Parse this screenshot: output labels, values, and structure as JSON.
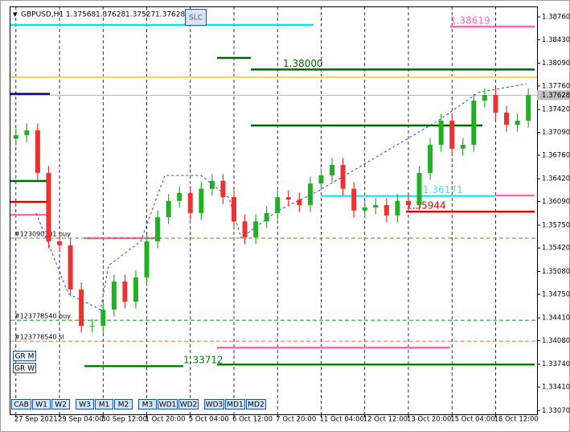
{
  "chart_data": {
    "type": "candlestick",
    "symbol": "GBPUSD,H1",
    "header_prices": [
      1.37568,
      1.37628,
      1.37527,
      1.37628
    ],
    "button_slc": "SLC",
    "buttons": [
      "CAB",
      "W1",
      "W2",
      "W3",
      "M1",
      "M2",
      "M3",
      "WD1",
      "WD2",
      "WD3",
      "MD1",
      "MD2"
    ],
    "side_buttons": [
      "GR M",
      "GR W"
    ],
    "up_color": "#22b022",
    "down_color": "#ee3030",
    "open": [
      1.37,
      1.3705,
      1.3712,
      1.36505,
      1.35515,
      1.3546,
      1.3482,
      1.34295,
      1.34295,
      1.3453,
      1.34935,
      1.34645,
      1.34995,
      1.35515,
      1.35865,
      1.361,
      1.36215,
      1.35925,
      1.36275,
      1.3639,
      1.36155,
      1.35805,
      1.35575,
      1.35805,
      1.35925,
      1.36155,
      1.3612,
      1.3604,
      1.3635,
      1.3647,
      1.3662,
      1.36275,
      1.3596,
      1.36005,
      1.3604,
      1.3589,
      1.361,
      1.3604,
      1.36505,
      1.3691,
      1.3726,
      1.36855,
      1.3691,
      1.3755,
      1.3763,
      1.37375,
      1.372,
      1.3726
    ],
    "high": [
      1.3715,
      1.3722,
      1.3722,
      1.36605,
      1.35615,
      1.3556,
      1.3492,
      1.34395,
      1.3463,
      1.35035,
      1.35035,
      1.35095,
      1.35615,
      1.35965,
      1.362,
      1.36315,
      1.36315,
      1.36375,
      1.3649,
      1.3649,
      1.36255,
      1.35905,
      1.35905,
      1.36025,
      1.36255,
      1.36255,
      1.3622,
      1.3645,
      1.3657,
      1.3672,
      1.3672,
      1.36375,
      1.36105,
      1.3614,
      1.3614,
      1.362,
      1.362,
      1.36605,
      1.3701,
      1.3736,
      1.3736,
      1.3701,
      1.3765,
      1.3773,
      1.3773,
      1.37475,
      1.3736,
      1.37728
    ],
    "low": [
      1.369,
      1.3695,
      1.36405,
      1.35415,
      1.3536,
      1.3472,
      1.34195,
      1.34195,
      1.34195,
      1.3443,
      1.34545,
      1.34545,
      1.34895,
      1.35415,
      1.35765,
      1.36,
      1.35825,
      1.35825,
      1.36175,
      1.36055,
      1.35705,
      1.35475,
      1.35475,
      1.35705,
      1.35825,
      1.3602,
      1.3594,
      1.3594,
      1.3625,
      1.3637,
      1.36175,
      1.3586,
      1.3586,
      1.35905,
      1.3579,
      1.3579,
      1.3594,
      1.3594,
      1.36405,
      1.3681,
      1.36755,
      1.36755,
      1.3681,
      1.3745,
      1.37275,
      1.371,
      1.371,
      1.3716
    ],
    "close": [
      1.3705,
      1.3712,
      1.36505,
      1.35515,
      1.3546,
      1.3482,
      1.34295,
      1.34295,
      1.3453,
      1.34935,
      1.34645,
      1.34995,
      1.35515,
      1.35865,
      1.361,
      1.36215,
      1.35925,
      1.36275,
      1.3639,
      1.36155,
      1.35805,
      1.35575,
      1.35805,
      1.35925,
      1.36155,
      1.3612,
      1.3604,
      1.3635,
      1.3647,
      1.3662,
      1.36275,
      1.3596,
      1.36005,
      1.3604,
      1.3589,
      1.361,
      1.3604,
      1.36505,
      1.3691,
      1.3726,
      1.36855,
      1.3691,
      1.3755,
      1.3763,
      1.37375,
      1.372,
      1.3726,
      1.37628
    ],
    "xlim": [
      -0.5,
      47.8
    ],
    "xticks": [
      {
        "value": 0,
        "label": "27 Sep 2021"
      },
      {
        "value": 4,
        "label": "29 Sep 04:00"
      },
      {
        "value": 8,
        "label": "30 Sep 12:00"
      },
      {
        "value": 12,
        "label": "1 Oct 20:00"
      },
      {
        "value": 16,
        "label": "5 Oct 04:00"
      },
      {
        "value": 20,
        "label": "6 Oct 12:00"
      },
      {
        "value": 24,
        "label": "7 Oct 20:00"
      },
      {
        "value": 28,
        "label": "11 Oct 04:00"
      },
      {
        "value": 32,
        "label": "12 Oct 12:00"
      },
      {
        "value": 36,
        "label": "13 Oct 20:00"
      },
      {
        "value": 40,
        "label": "15 Oct 04:00"
      },
      {
        "value": 44,
        "label": "18 Oct 12:00"
      }
    ],
    "ylim": [
      1.33016,
      1.38911
    ],
    "yticks": [
      {
        "value": 1.3876,
        "label": "1.38760"
      },
      {
        "value": 1.3843,
        "label": "1.38430"
      },
      {
        "value": 1.3809,
        "label": "1.38090"
      },
      {
        "value": 1.3776,
        "label": "1.37760"
      },
      {
        "value": 1.3742,
        "label": "1.37420"
      },
      {
        "value": 1.3709,
        "label": "1.37090"
      },
      {
        "value": 1.3676,
        "label": "1.36760"
      },
      {
        "value": 1.3642,
        "label": "1.36420"
      },
      {
        "value": 1.3609,
        "label": "1.36090"
      },
      {
        "value": 1.3575,
        "label": "1.35750"
      },
      {
        "value": 1.3542,
        "label": "1.35420"
      },
      {
        "value": 1.3508,
        "label": "1.35080"
      },
      {
        "value": 1.3475,
        "label": "1.34750"
      },
      {
        "value": 1.3441,
        "label": "1.34410"
      },
      {
        "value": 1.3408,
        "label": "1.34080"
      },
      {
        "value": 1.3374,
        "label": "1.33740"
      },
      {
        "value": 1.3341,
        "label": "1.33410"
      },
      {
        "value": 1.3307,
        "label": "1.33070"
      }
    ],
    "current_price": 1.37628,
    "levels": [
      {
        "value": 1.38644,
        "color": "#00e5ee"
      },
      {
        "value": 1.37888,
        "color": "#f0d870"
      },
      {
        "value": 1.37644,
        "color": "#000080"
      },
      {
        "value": 1.38619,
        "color": "#ff69b4",
        "label": "1.38619"
      },
      {
        "value": 1.38,
        "color": "#006400",
        "label": "1.38000"
      },
      {
        "value": 1.38167,
        "color": "#006400"
      },
      {
        "value": 1.3719,
        "color": "#006400"
      },
      {
        "value": 1.36171,
        "color": "#40e0f0",
        "label": "1.36171"
      },
      {
        "value": 1.36178,
        "color": "#ff69b4"
      },
      {
        "value": 1.35944,
        "color": "#dd0000",
        "label": "1.35944"
      },
      {
        "value": 1.36388,
        "color": "#006400"
      },
      {
        "value": 1.36085,
        "color": "#dd0000"
      },
      {
        "value": 1.35899,
        "color": "#ff69b4"
      },
      {
        "value": 1.35562,
        "color": "#ff69b4"
      },
      {
        "value": 1.3398,
        "color": "#ff69b4"
      },
      {
        "value": 1.33712,
        "color": "#008000",
        "label": "1.33712"
      },
      {
        "value": 1.33736,
        "color": "#008000"
      }
    ],
    "orders": [
      {
        "value": 1.35562,
        "color": "#808000",
        "name": "#123090701 buy"
      },
      {
        "value": 1.34375,
        "color": "#00a000",
        "name": "#123778540 buy"
      },
      {
        "value": 1.34073,
        "color": "#e07030",
        "name": "#123778540 sl"
      }
    ]
  }
}
